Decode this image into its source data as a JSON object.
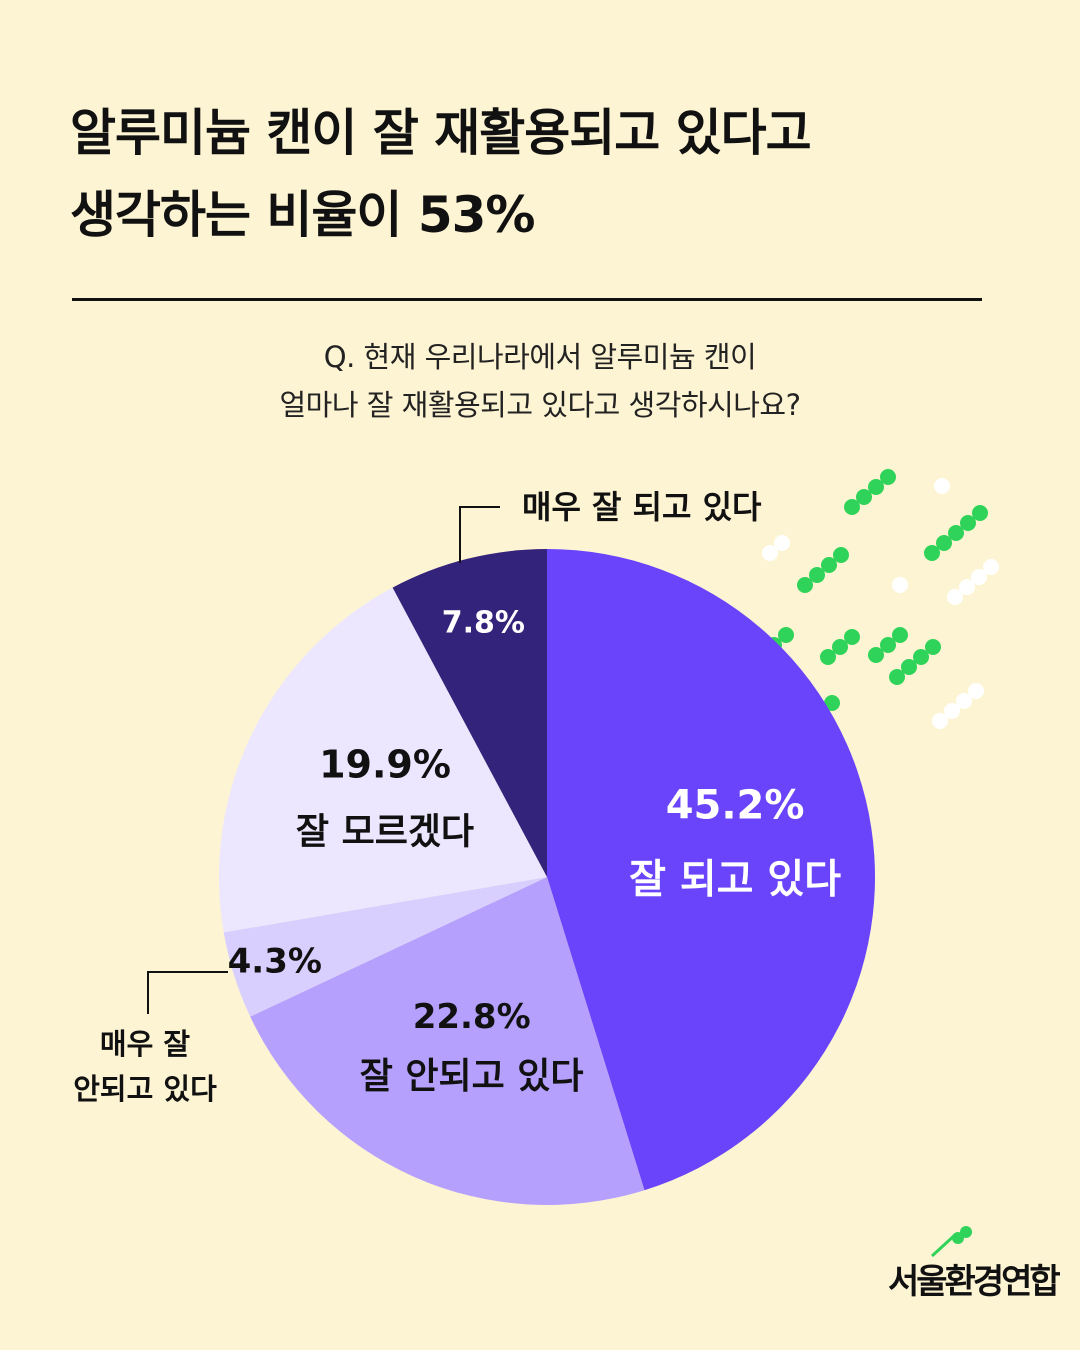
{
  "headline": {
    "line1": "알루미늄 캔이 잘 재활용되고 있다고",
    "line2": "생각하는 비율이 53%"
  },
  "question": {
    "line1": "Q. 현재 우리나라에서 알루미늄 캔이",
    "line2": "얼마나 잘 재활용되고 있다고 생각하시나요?"
  },
  "colors": {
    "background": "#fdf4d3",
    "slice_45": "#6a44fa",
    "slice_22": "#b5a1fd",
    "slice_4": "#d9cffe",
    "slice_19": "#ece7fe",
    "slice_7": "#34237a",
    "deco_green": "#2fd35a",
    "deco_white": "#ffffff"
  },
  "chart_data": {
    "type": "pie",
    "title": "",
    "slices": [
      {
        "label": "잘 되고 있다",
        "value": 45.2,
        "value_text": "45.2%",
        "color": "#6a44fa",
        "text_color": "#ffffff",
        "callout": false
      },
      {
        "label": "잘 안되고 있다",
        "value": 22.8,
        "value_text": "22.8%",
        "color": "#b5a1fd",
        "text_color": "#111111",
        "callout": false
      },
      {
        "label": "매우 잘 안되고 있다",
        "label_lines": [
          "매우 잘",
          "안되고 있다"
        ],
        "value": 4.3,
        "value_text": "4.3%",
        "color": "#d9cffe",
        "text_color": "#111111",
        "callout": true
      },
      {
        "label": "잘 모르겠다",
        "value": 19.9,
        "value_text": "19.9%",
        "color": "#ece7fe",
        "text_color": "#111111",
        "callout": false
      },
      {
        "label": "매우 잘 되고 있다",
        "value": 7.8,
        "value_text": "7.8%",
        "color": "#34237a",
        "text_color": "#ffffff",
        "callout": true
      }
    ]
  },
  "logo": {
    "text": "서울환경연합",
    "icon": "sprout-dots-icon"
  }
}
